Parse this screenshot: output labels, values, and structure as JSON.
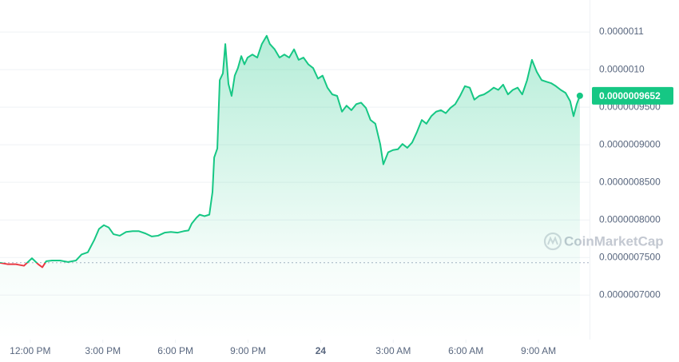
{
  "chart_data": {
    "type": "line",
    "color": "#16c784",
    "down_color": "#ea3943",
    "watermark": "CoinMarketCap",
    "reference_line": 7.43e-07,
    "current_price": {
      "value": 9.652e-07,
      "label": "0.0000009652"
    },
    "xlim": [
      10.75,
      35.11
    ],
    "xticks": [
      {
        "value": 12,
        "label": "12:00 PM"
      },
      {
        "value": 15,
        "label": "3:00 PM"
      },
      {
        "value": 18,
        "label": "6:00 PM"
      },
      {
        "value": 21,
        "label": "9:00 PM"
      },
      24,
      {
        "value": 27,
        "label": "3:00 AM"
      },
      {
        "value": 30,
        "label": "6:00 AM"
      },
      {
        "value": 33,
        "label": "9:00 AM"
      }
    ],
    "ylim": [
      6.404e-07,
      1.0926e-06
    ],
    "yticks": [
      {
        "value": 1.05e-06,
        "label": "0.0000011"
      },
      {
        "value": 1e-06,
        "label": "0.0000010"
      },
      {
        "value": 9.5e-07,
        "label": "0.0000009500"
      },
      {
        "value": 9e-07,
        "label": "0.0000009000"
      },
      {
        "value": 8.5e-07,
        "label": "0.0000008500"
      },
      {
        "value": 8e-07,
        "label": "0.0000008000"
      },
      {
        "value": 7.5e-07,
        "label": "0.0000007500"
      },
      {
        "value": 7e-07,
        "label": "0.0000007000"
      }
    ],
    "grid": true,
    "x": [
      10.75,
      11.08,
      11.41,
      11.74,
      12.07,
      12.33,
      12.5,
      12.66,
      12.9,
      13.23,
      13.56,
      13.89,
      14.12,
      14.38,
      14.64,
      14.84,
      15.04,
      15.24,
      15.44,
      15.7,
      15.96,
      16.23,
      16.49,
      16.76,
      17.02,
      17.28,
      17.55,
      17.81,
      18.08,
      18.34,
      18.54,
      18.67,
      18.87,
      19.0,
      19.2,
      19.4,
      19.53,
      19.6,
      19.73,
      19.83,
      19.96,
      20.06,
      20.19,
      20.32,
      20.45,
      20.58,
      20.72,
      20.85,
      20.98,
      21.18,
      21.38,
      21.57,
      21.77,
      21.9,
      22.1,
      22.3,
      22.5,
      22.7,
      22.9,
      23.09,
      23.29,
      23.49,
      23.69,
      23.89,
      24.08,
      24.28,
      24.48,
      24.68,
      24.88,
      25.07,
      25.27,
      25.47,
      25.67,
      25.87,
      26.06,
      26.26,
      26.46,
      26.59,
      26.79,
      26.99,
      27.19,
      27.38,
      27.58,
      27.78,
      27.98,
      28.18,
      28.37,
      28.57,
      28.77,
      28.97,
      29.17,
      29.36,
      29.56,
      29.76,
      29.96,
      30.16,
      30.35,
      30.55,
      30.75,
      30.95,
      31.15,
      31.34,
      31.54,
      31.74,
      31.94,
      32.14,
      32.33,
      32.53,
      32.73,
      32.93,
      33.13,
      33.32,
      33.52,
      33.72,
      33.92,
      34.12,
      34.31,
      34.45,
      34.58,
      34.71
    ],
    "values": [
      7.43e-07,
      7.41e-07,
      7.41e-07,
      7.39e-07,
      7.49e-07,
      7.41e-07,
      7.37e-07,
      7.45e-07,
      7.46e-07,
      7.46e-07,
      7.44e-07,
      7.46e-07,
      7.54e-07,
      7.57e-07,
      7.73e-07,
      7.88e-07,
      7.93e-07,
      7.9e-07,
      7.81e-07,
      7.79e-07,
      7.84e-07,
      7.85e-07,
      7.85e-07,
      7.82e-07,
      7.78e-07,
      7.79e-07,
      7.83e-07,
      7.84e-07,
      7.83e-07,
      7.85e-07,
      7.86e-07,
      7.95e-07,
      8.03e-07,
      8.07e-07,
      8.05e-07,
      8.07e-07,
      8.37e-07,
      8.83e-07,
      8.95e-07,
      9.86e-07,
      9.95e-07,
      1.034e-06,
      9.81e-07,
      9.65e-07,
      9.92e-07,
      1.002e-06,
      1.018e-06,
      1.007e-06,
      1.016e-06,
      1.02e-06,
      1.016e-06,
      1.034e-06,
      1.045e-06,
      1.034e-06,
      1.027e-06,
      1.016e-06,
      1.02e-06,
      1.016e-06,
      1.027e-06,
      1.013e-06,
      1.016e-06,
      1.007e-06,
      1.002e-06,
      9.88e-07,
      9.92e-07,
      9.76e-07,
      9.67e-07,
      9.65e-07,
      9.44e-07,
      9.52e-07,
      9.46e-07,
      9.54e-07,
      9.56e-07,
      9.49e-07,
      9.33e-07,
      9.28e-07,
      9.01e-07,
      8.74e-07,
      8.9e-07,
      8.93e-07,
      8.94e-07,
      9.01e-07,
      8.96e-07,
      9.03e-07,
      9.17e-07,
      9.33e-07,
      9.28e-07,
      9.38e-07,
      9.44e-07,
      9.46e-07,
      9.42e-07,
      9.49e-07,
      9.54e-07,
      9.65e-07,
      9.78e-07,
      9.76e-07,
      9.6e-07,
      9.65e-07,
      9.67e-07,
      9.71e-07,
      9.76e-07,
      9.73e-07,
      9.8e-07,
      9.67e-07,
      9.73e-07,
      9.76e-07,
      9.67e-07,
      9.86e-07,
      1.013e-06,
      9.97e-07,
      9.86e-07,
      9.84e-07,
      9.82e-07,
      9.78e-07,
      9.73e-07,
      9.69e-07,
      9.58e-07,
      9.38e-07,
      9.54e-07,
      9.652e-07
    ]
  }
}
